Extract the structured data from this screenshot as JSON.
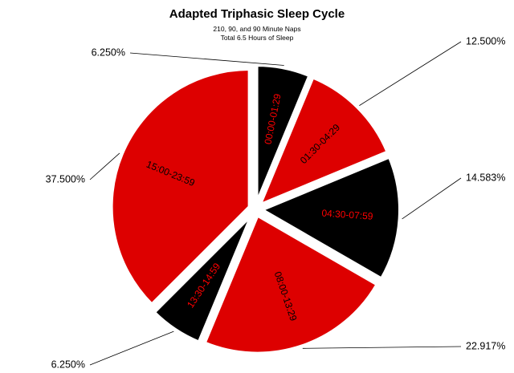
{
  "chart_data": {
    "type": "pie",
    "title": "Adapted Triphasic Sleep Cycle",
    "subtitle": [
      "210, 90, and 90 Minute Naps",
      "Total 6.5 Hours of Sleep"
    ],
    "slices": [
      {
        "label": "00:00-01:29",
        "value": 6.25,
        "value_label": "6.250%",
        "color": "#000000",
        "text_color": "#ff0000"
      },
      {
        "label": "01:30-04:29",
        "value": 12.5,
        "value_label": "12.500%",
        "color": "#dd0000",
        "text_color": "#000000"
      },
      {
        "label": "04:30-07:59",
        "value": 14.583,
        "value_label": "14.583%",
        "color": "#000000",
        "text_color": "#ff0000"
      },
      {
        "label": "08:00-13:29",
        "value": 22.917,
        "value_label": "22.917%",
        "color": "#dd0000",
        "text_color": "#000000"
      },
      {
        "label": "13:30-14:59",
        "value": 6.25,
        "value_label": "6.250%",
        "color": "#000000",
        "text_color": "#ff0000"
      },
      {
        "label": "15:00-23:59",
        "value": 37.5,
        "value_label": "37.500%",
        "color": "#dd0000",
        "text_color": "#000000"
      }
    ],
    "exploded": true,
    "legend": "none"
  }
}
